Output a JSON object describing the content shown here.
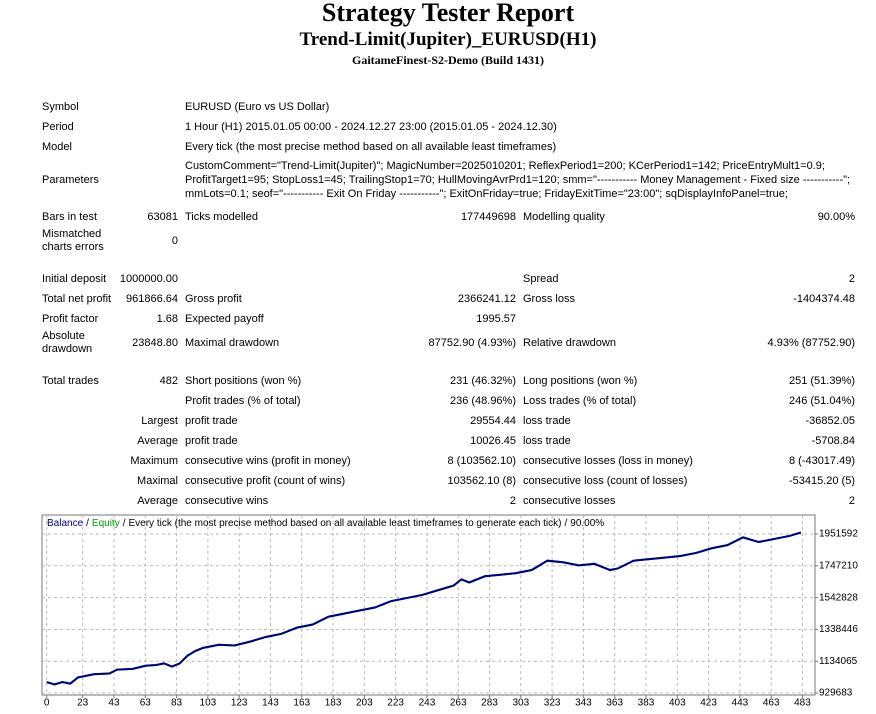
{
  "header": {
    "title": "Strategy Tester Report",
    "subtitle": "Trend-Limit(Jupiter)_EURUSD(H1)",
    "server": "GaitameFinest-S2-Demo (Build 1431)"
  },
  "info": [
    {
      "label": "Symbol",
      "value": [
        "EURUSD (Euro vs US Dollar)"
      ]
    },
    {
      "label": "Period",
      "value": [
        "1 Hour (H1) 2015.01.05 00:00 - 2024.12.27 23:00 (2015.01.05 - 2024.12.30)"
      ]
    },
    {
      "label": "Model",
      "value": [
        "Every tick (the most precise method based on all available least timeframes)"
      ]
    },
    {
      "label": "Parameters",
      "value": [
        "CustomComment=\"Trend-Limit(Jupiter)\"; MagicNumber=2025010201; ReflexPeriod1=200; KCerPeriod1=142; PriceEntryMult1=0.9;",
        "ProfitTarget1=95; StopLoss1=45; TrailingStop1=70; HullMovingAvrPrd1=120; smm=\"----------- Money Management - Fixed size -----------\";",
        "mmLots=0.1; seof=\"----------- Exit On Friday -----------\"; ExitOnFriday=true; FridayExitTime=\"23:00\"; sqDisplayInfoPanel=true;"
      ]
    }
  ],
  "stats": [
    [
      [
        "Bars in test",
        "63081",
        "Ticks modelled",
        "177449698",
        "Modelling quality",
        "90.00%"
      ],
      [
        "Mismatched charts errors",
        "0",
        null,
        null,
        null,
        null
      ]
    ],
    [
      [
        "Initial deposit",
        "1000000.00",
        null,
        null,
        "Spread",
        "2"
      ],
      [
        "Total net profit",
        "961866.64",
        "Gross profit",
        "2366241.12",
        "Gross loss",
        "-1404374.48"
      ],
      [
        "Profit factor",
        "1.68",
        "Expected payoff",
        "1995.57",
        null,
        null
      ],
      [
        "Absolute drawdown",
        "23848.80",
        "Maximal drawdown",
        "87752.90 (4.93%)",
        "Relative drawdown",
        "4.93% (87752.90)"
      ]
    ],
    [
      [
        "Total trades",
        "482",
        "Short positions (won %)",
        "231 (46.32%)",
        "Long positions (won %)",
        "251 (51.39%)"
      ],
      [
        null,
        null,
        "Profit trades (% of total)",
        "236 (48.96%)",
        "Loss trades (% of total)",
        "246 (51.04%)"
      ],
      [
        null,
        "Largest",
        "profit trade",
        "29554.44",
        "loss trade",
        "-36852.05"
      ],
      [
        null,
        "Average",
        "profit trade",
        "10026.45",
        "loss trade",
        "-5708.84"
      ],
      [
        null,
        "Maximum",
        "consecutive wins (profit in money)",
        "8 (103562.10)",
        "consecutive losses (loss in money)",
        "8 (-43017.49)"
      ],
      [
        null,
        "Maximal",
        "consecutive profit (count of wins)",
        "103562.10 (8)",
        "consecutive loss (count of losses)",
        "-53415.20 (5)"
      ],
      [
        null,
        "Average",
        "consecutive wins",
        "2",
        "consecutive losses",
        "2"
      ]
    ]
  ],
  "chart_data": {
    "type": "line",
    "legend_separator": "/",
    "model_caption": "Every tick (the most precise method based on all available least timeframes to generate each tick)",
    "quality": "90.00%",
    "x": [
      0,
      5,
      10,
      15,
      20,
      25,
      30,
      40,
      45,
      55,
      63,
      70,
      75,
      80,
      85,
      90,
      95,
      100,
      110,
      120,
      130,
      140,
      150,
      160,
      170,
      180,
      190,
      200,
      210,
      220,
      230,
      240,
      250,
      260,
      265,
      270,
      280,
      290,
      300,
      310,
      320,
      330,
      340,
      350,
      360,
      365,
      375,
      385,
      395,
      405,
      415,
      425,
      435,
      445,
      455,
      465,
      475,
      482
    ],
    "series": [
      {
        "name": "Equity",
        "color": "#00a000",
        "values": [
          1000000,
          985000,
          1000000,
          990000,
          1030000,
          1040000,
          1050000,
          1055000,
          1080000,
          1085000,
          1105000,
          1110000,
          1120000,
          1100000,
          1120000,
          1170000,
          1200000,
          1220000,
          1240000,
          1235000,
          1260000,
          1290000,
          1310000,
          1350000,
          1370000,
          1420000,
          1440000,
          1460000,
          1480000,
          1520000,
          1540000,
          1560000,
          1590000,
          1620000,
          1660000,
          1640000,
          1680000,
          1690000,
          1700000,
          1720000,
          1780000,
          1770000,
          1750000,
          1760000,
          1720000,
          1730000,
          1780000,
          1790000,
          1800000,
          1810000,
          1830000,
          1860000,
          1880000,
          1930000,
          1900000,
          1920000,
          1940000,
          1961866.64
        ]
      },
      {
        "name": "Balance",
        "color": "#00008b",
        "values": [
          1000000,
          985000,
          1000000,
          990000,
          1030000,
          1040000,
          1050000,
          1055000,
          1080000,
          1085000,
          1105000,
          1110000,
          1120000,
          1100000,
          1120000,
          1170000,
          1200000,
          1220000,
          1240000,
          1235000,
          1260000,
          1290000,
          1310000,
          1350000,
          1370000,
          1420000,
          1440000,
          1460000,
          1480000,
          1520000,
          1540000,
          1560000,
          1590000,
          1620000,
          1660000,
          1640000,
          1680000,
          1690000,
          1700000,
          1720000,
          1780000,
          1770000,
          1750000,
          1760000,
          1720000,
          1730000,
          1780000,
          1790000,
          1800000,
          1810000,
          1830000,
          1860000,
          1880000,
          1930000,
          1900000,
          1920000,
          1940000,
          1961866.64
        ]
      }
    ],
    "xlim": [
      -3,
      491
    ],
    "xticks": [
      0,
      23,
      43,
      63,
      83,
      103,
      123,
      143,
      163,
      183,
      203,
      223,
      243,
      263,
      283,
      303,
      323,
      343,
      363,
      383,
      403,
      423,
      443,
      463,
      483
    ],
    "ylim": [
      917000,
      2073700
    ],
    "yticks": [
      929683,
      1134065,
      1338446,
      1542828,
      1747210,
      1951592
    ],
    "grid": true
  }
}
